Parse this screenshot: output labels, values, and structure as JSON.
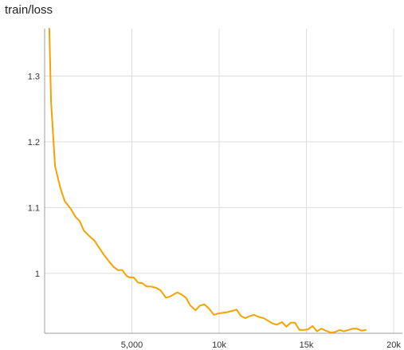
{
  "chart_data": {
    "type": "line",
    "title": "train/loss",
    "xlabel": "",
    "ylabel": "",
    "xlim": [
      0,
      20500
    ],
    "ylim": [
      0.909,
      1.372
    ],
    "x_ticks": [
      5000,
      10000,
      15000,
      20000
    ],
    "x_tick_labels": [
      "5,000",
      "10k",
      "15k",
      "20k"
    ],
    "y_ticks": [
      1.0,
      1.1,
      1.2,
      1.3
    ],
    "y_tick_labels": [
      "1",
      "1.1",
      "1.2",
      "1.3"
    ],
    "grid": true,
    "legend": "none",
    "line_color": "#f4a300",
    "series": [
      {
        "x": [
          270,
          370,
          600,
          900,
          1150,
          1500,
          1800,
          2000,
          2250,
          2550,
          2850,
          3150,
          3400,
          3700,
          3950,
          4200,
          4450,
          4700,
          4850,
          5100,
          5350,
          5600,
          5850,
          6100,
          6400,
          6650,
          6950,
          7200,
          7400,
          7600,
          7850,
          8100,
          8350,
          8650,
          8900,
          9150,
          9400,
          9700,
          9950,
          10200,
          10450,
          10750,
          11000,
          11250,
          11500,
          11750,
          12000,
          12250,
          12550,
          12800,
          13050,
          13300,
          13600,
          13850,
          14100,
          14350,
          14600,
          14850,
          15100,
          15350,
          15600,
          15850,
          16100,
          16400,
          16650,
          16900,
          17150,
          17400,
          17650,
          17900,
          18150,
          18400
        ],
        "y": [
          1.372,
          1.26,
          1.163,
          1.13,
          1.11,
          1.098,
          1.085,
          1.08,
          1.065,
          1.057,
          1.05,
          1.038,
          1.028,
          1.018,
          1.01,
          1.005,
          1.005,
          0.996,
          0.994,
          0.994,
          0.986,
          0.985,
          0.98,
          0.98,
          0.978,
          0.974,
          0.963,
          0.965,
          0.968,
          0.971,
          0.968,
          0.963,
          0.951,
          0.944,
          0.951,
          0.953,
          0.947,
          0.937,
          0.939,
          0.94,
          0.941,
          0.943,
          0.945,
          0.935,
          0.932,
          0.935,
          0.937,
          0.934,
          0.932,
          0.928,
          0.924,
          0.922,
          0.926,
          0.919,
          0.925,
          0.925,
          0.914,
          0.914,
          0.915,
          0.92,
          0.912,
          0.916,
          0.913,
          0.91,
          0.911,
          0.914,
          0.912,
          0.914,
          0.916,
          0.916,
          0.913,
          0.914
        ]
      }
    ]
  }
}
